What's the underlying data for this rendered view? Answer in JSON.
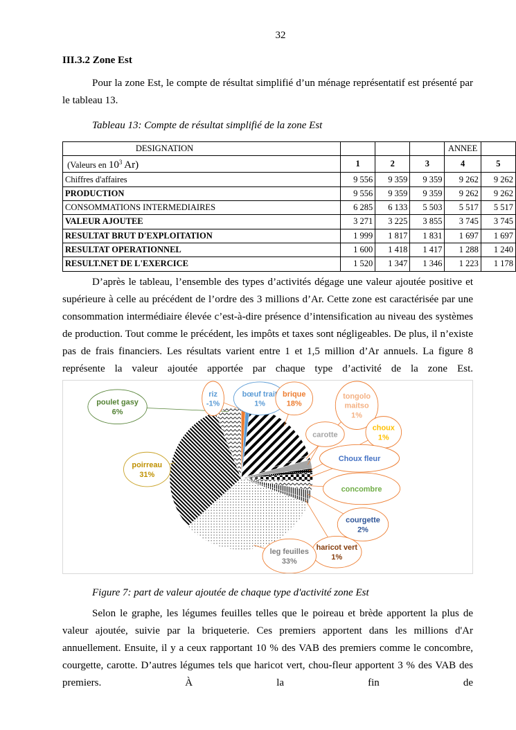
{
  "page_number": "32",
  "heading": "III.3.2 Zone Est",
  "paragraph1": "Pour la zone Est, le compte de résultat simplifié d’un ménage représentatif est présenté par le tableau 13.",
  "table_caption": "Tableau 13: Compte de résultat simplifié de la zone Est",
  "table": {
    "header1": {
      "designation": "DESIGNATION",
      "annee": "ANNEE"
    },
    "header2": {
      "unit_prefix": "(Valeurs en ",
      "unit_base": "10",
      "unit_exp": "3",
      "unit_suffix": " Ar)",
      "years": [
        "1",
        "2",
        "3",
        "4",
        "5"
      ]
    },
    "rows": [
      {
        "label": "Chiffres d'affaires",
        "bold": false,
        "values": [
          "9 556",
          "9 359",
          "9 359",
          "9 262",
          "9 262"
        ]
      },
      {
        "label": "PRODUCTION",
        "bold": true,
        "values": [
          "9 556",
          "9 359",
          "9 359",
          "9 262",
          "9 262"
        ]
      },
      {
        "label": "CONSOMMATIONS INTERMEDIAIRES",
        "bold": false,
        "values": [
          "6 285",
          "6 133",
          "5 503",
          "5 517",
          "5 517"
        ]
      },
      {
        "label": "VALEUR AJOUTEE",
        "bold": true,
        "values": [
          "3 271",
          "3 225",
          "3 855",
          "3 745",
          "3 745"
        ]
      },
      {
        "label": "RESULTAT BRUT D'EXPLOITATION",
        "bold": true,
        "values": [
          "1 999",
          "1 817",
          "1 831",
          "1 697",
          "1 697"
        ]
      },
      {
        "label": "RESULTAT OPERATIONNEL",
        "bold": true,
        "values": [
          "1 600",
          "1 418",
          "1 417",
          "1 288",
          "1 240"
        ]
      },
      {
        "label": "RESULT.NET DE L'EXERCICE",
        "bold": true,
        "values": [
          "1 520",
          "1 347",
          "1 346",
          "1 223",
          "1 178"
        ]
      }
    ]
  },
  "paragraph2": "D’après le tableau, l’ensemble des types d’activités dégage une valeur ajoutée positive et supérieure à celle au précédent de l’ordre des 3 millions d’Ar. Cette zone est caractérisée par une consommation intermédiaire élevée c’est-à-dire présence d’intensification au niveau des systèmes de production. Tout comme le précédent, les impôts et taxes sont négligeables. De plus, il n’existe pas de frais financiers. Les résultats varient entre 1 et 1,5 million d’Ar annuels. La figure 8 représente la valeur ajoutée apportée par chaque type d’activité de la zone Est.",
  "chart_data": {
    "type": "pie",
    "title": "",
    "unit": "%",
    "slices": [
      {
        "label": "riz",
        "value": -1,
        "label_color": "#5b9bd5",
        "border_color": "#ed7d31",
        "fill": "#ed7d31"
      },
      {
        "label": "bœuf trait",
        "value": 1,
        "label_color": "#5b9bd5",
        "border_color": "#5b9bd5",
        "fill": "#5b9bd5"
      },
      {
        "label": "brique",
        "value": 18,
        "label_color": "#ed7d31",
        "border_color": "#ed7d31",
        "fill": "pattern-diagonal-wide"
      },
      {
        "label": "tongolo maitso",
        "value": 1,
        "label_color": "#f4b183",
        "border_color": "#ed7d31",
        "fill": "pattern-diagonal-wide"
      },
      {
        "label": "carotte",
        "value": null,
        "label_color": "#a5a5a5",
        "border_color": "#ed7d31",
        "fill": "#a5a5a5"
      },
      {
        "label": "choux",
        "value": 1,
        "label_color": "#ffc000",
        "border_color": "#ed7d31",
        "fill": "pattern-dense"
      },
      {
        "label": "Choux fleur",
        "value": null,
        "label_color": "#4472c4",
        "border_color": "#ed7d31",
        "fill": "pattern-checker"
      },
      {
        "label": "concombre",
        "value": null,
        "label_color": "#70ad47",
        "border_color": "#ed7d31",
        "fill": "pattern-zigzag"
      },
      {
        "label": "courgette",
        "value": 2,
        "label_color": "#2f5597",
        "border_color": "#ed7d31",
        "fill": "pattern-vertical"
      },
      {
        "label": "haricot vert",
        "value": 1,
        "label_color": "#843c0c",
        "border_color": "#ed7d31",
        "fill": "pattern-vertical"
      },
      {
        "label": "leg feuilles",
        "value": 33,
        "label_color": "#7f7f7f",
        "border_color": "#ed7d31",
        "fill": "pattern-dots"
      },
      {
        "label": "poirreau",
        "value": 31,
        "label_color": "#bf9000",
        "border_color": "#c9a227",
        "fill": "pattern-diagonal-dense"
      },
      {
        "label": "poulet gasy",
        "value": 6,
        "label_color": "#548235",
        "border_color": "#548235",
        "fill": "pattern-zigzag"
      }
    ]
  },
  "figure_caption": "Figure 7: part de valeur ajoutée de chaque type d'activité zone Est",
  "paragraph3": "Selon le graphe, les légumes feuilles telles que le poireau et brède apportent la plus de valeur ajoutée, suivie par la briqueterie. Ces premiers apportent dans les millions d'Ar annuellement. Ensuite, il y a ceux rapportant 10 % des VAB des premiers comme le concombre, courgette, carotte. D’autres légumes tels que haricot vert, chou-fleur apportent 3 % des VAB des premiers. À la fin de"
}
